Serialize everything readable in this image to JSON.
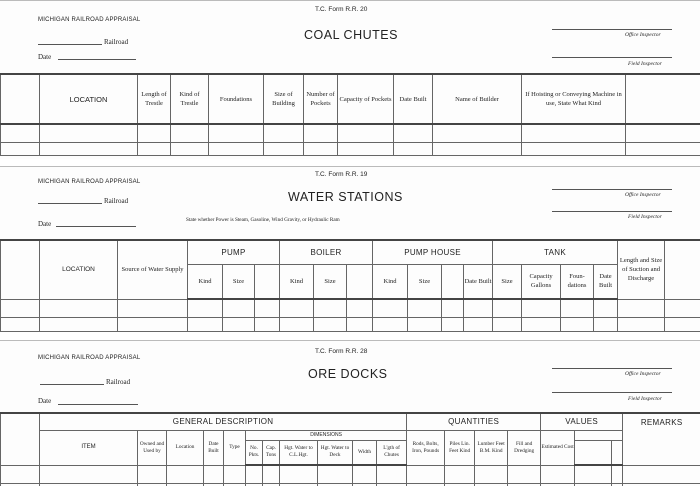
{
  "forms": [
    {
      "agency": "MICHIGAN RAILROAD APPRAISAL",
      "form_number": "T.C. Form R.R. 20",
      "title": "COAL CHUTES",
      "railroad_label": "Railroad",
      "date_label": "Date",
      "office_inspector": "Office Inspector",
      "field_inspector": "Field Inspector",
      "columns": [
        "LOCATION",
        "Length of Trestle",
        "Kind of Trestle",
        "Foundations",
        "Size of Building",
        "Number of Pockets",
        "Capacity of Pockets",
        "Date Built",
        "Name of Builder",
        "If Hoisting or Conveying Machine in use, State What Kind"
      ]
    },
    {
      "agency": "MICHIGAN RAILROAD APPRAISAL",
      "form_number": "T.C. Form R.R. 19",
      "title": "WATER STATIONS",
      "railroad_label": "Railroad",
      "date_label": "Date",
      "office_inspector": "Office Inspector",
      "field_inspector": "Field Inspector",
      "note": "State whether Power is Steam, Gasoline, Wind Gravity, or Hydraulic Ram",
      "columns": {
        "location": "LOCATION",
        "source": "Source of Water Supply",
        "pump": "PUMP",
        "boiler": "BOILER",
        "pump_house": "PUMP HOUSE",
        "tank": "TANK",
        "suction": "Length and Size of Suction and Discharge",
        "kind": "Kind",
        "size": "Size",
        "date_built": "Date Built",
        "capacity": "Capacity Gallons",
        "foundations": "Foun- dations"
      }
    },
    {
      "agency": "MICHIGAN RAILROAD APPRAISAL",
      "form_number": "T.C. Form R.R. 28",
      "title": "ORE DOCKS",
      "railroad_label": "Railroad",
      "date_label": "Date",
      "office_inspector": "Office Inspector",
      "field_inspector": "Field Inspector",
      "columns": {
        "general": "GENERAL DESCRIPTION",
        "quantities": "QUANTITIES",
        "values": "VALUES",
        "remarks": "REMARKS",
        "item": "ITEM",
        "owned": "Owned and Used by",
        "location": "Location",
        "date_built": "Date Built",
        "type": "Type",
        "dimensions": "DIMENSIONS",
        "pkts": "No. Pkts.",
        "tons": "Cap. Tons",
        "hgt_cl": "Hgt. Water to C.L.Hgt.",
        "hgt_deck": "Hgt. Water to Deck",
        "width": "Width",
        "chutes": "L'gth of Chutes",
        "rods": "Rods, Bolts, Iron, Pounds",
        "piles": "Piles Lin. Feet Kind",
        "lumber": "Lumber Feet B.M. Kind",
        "fill": "Fill and Dredging",
        "cost": "Estimated Cost"
      }
    }
  ]
}
